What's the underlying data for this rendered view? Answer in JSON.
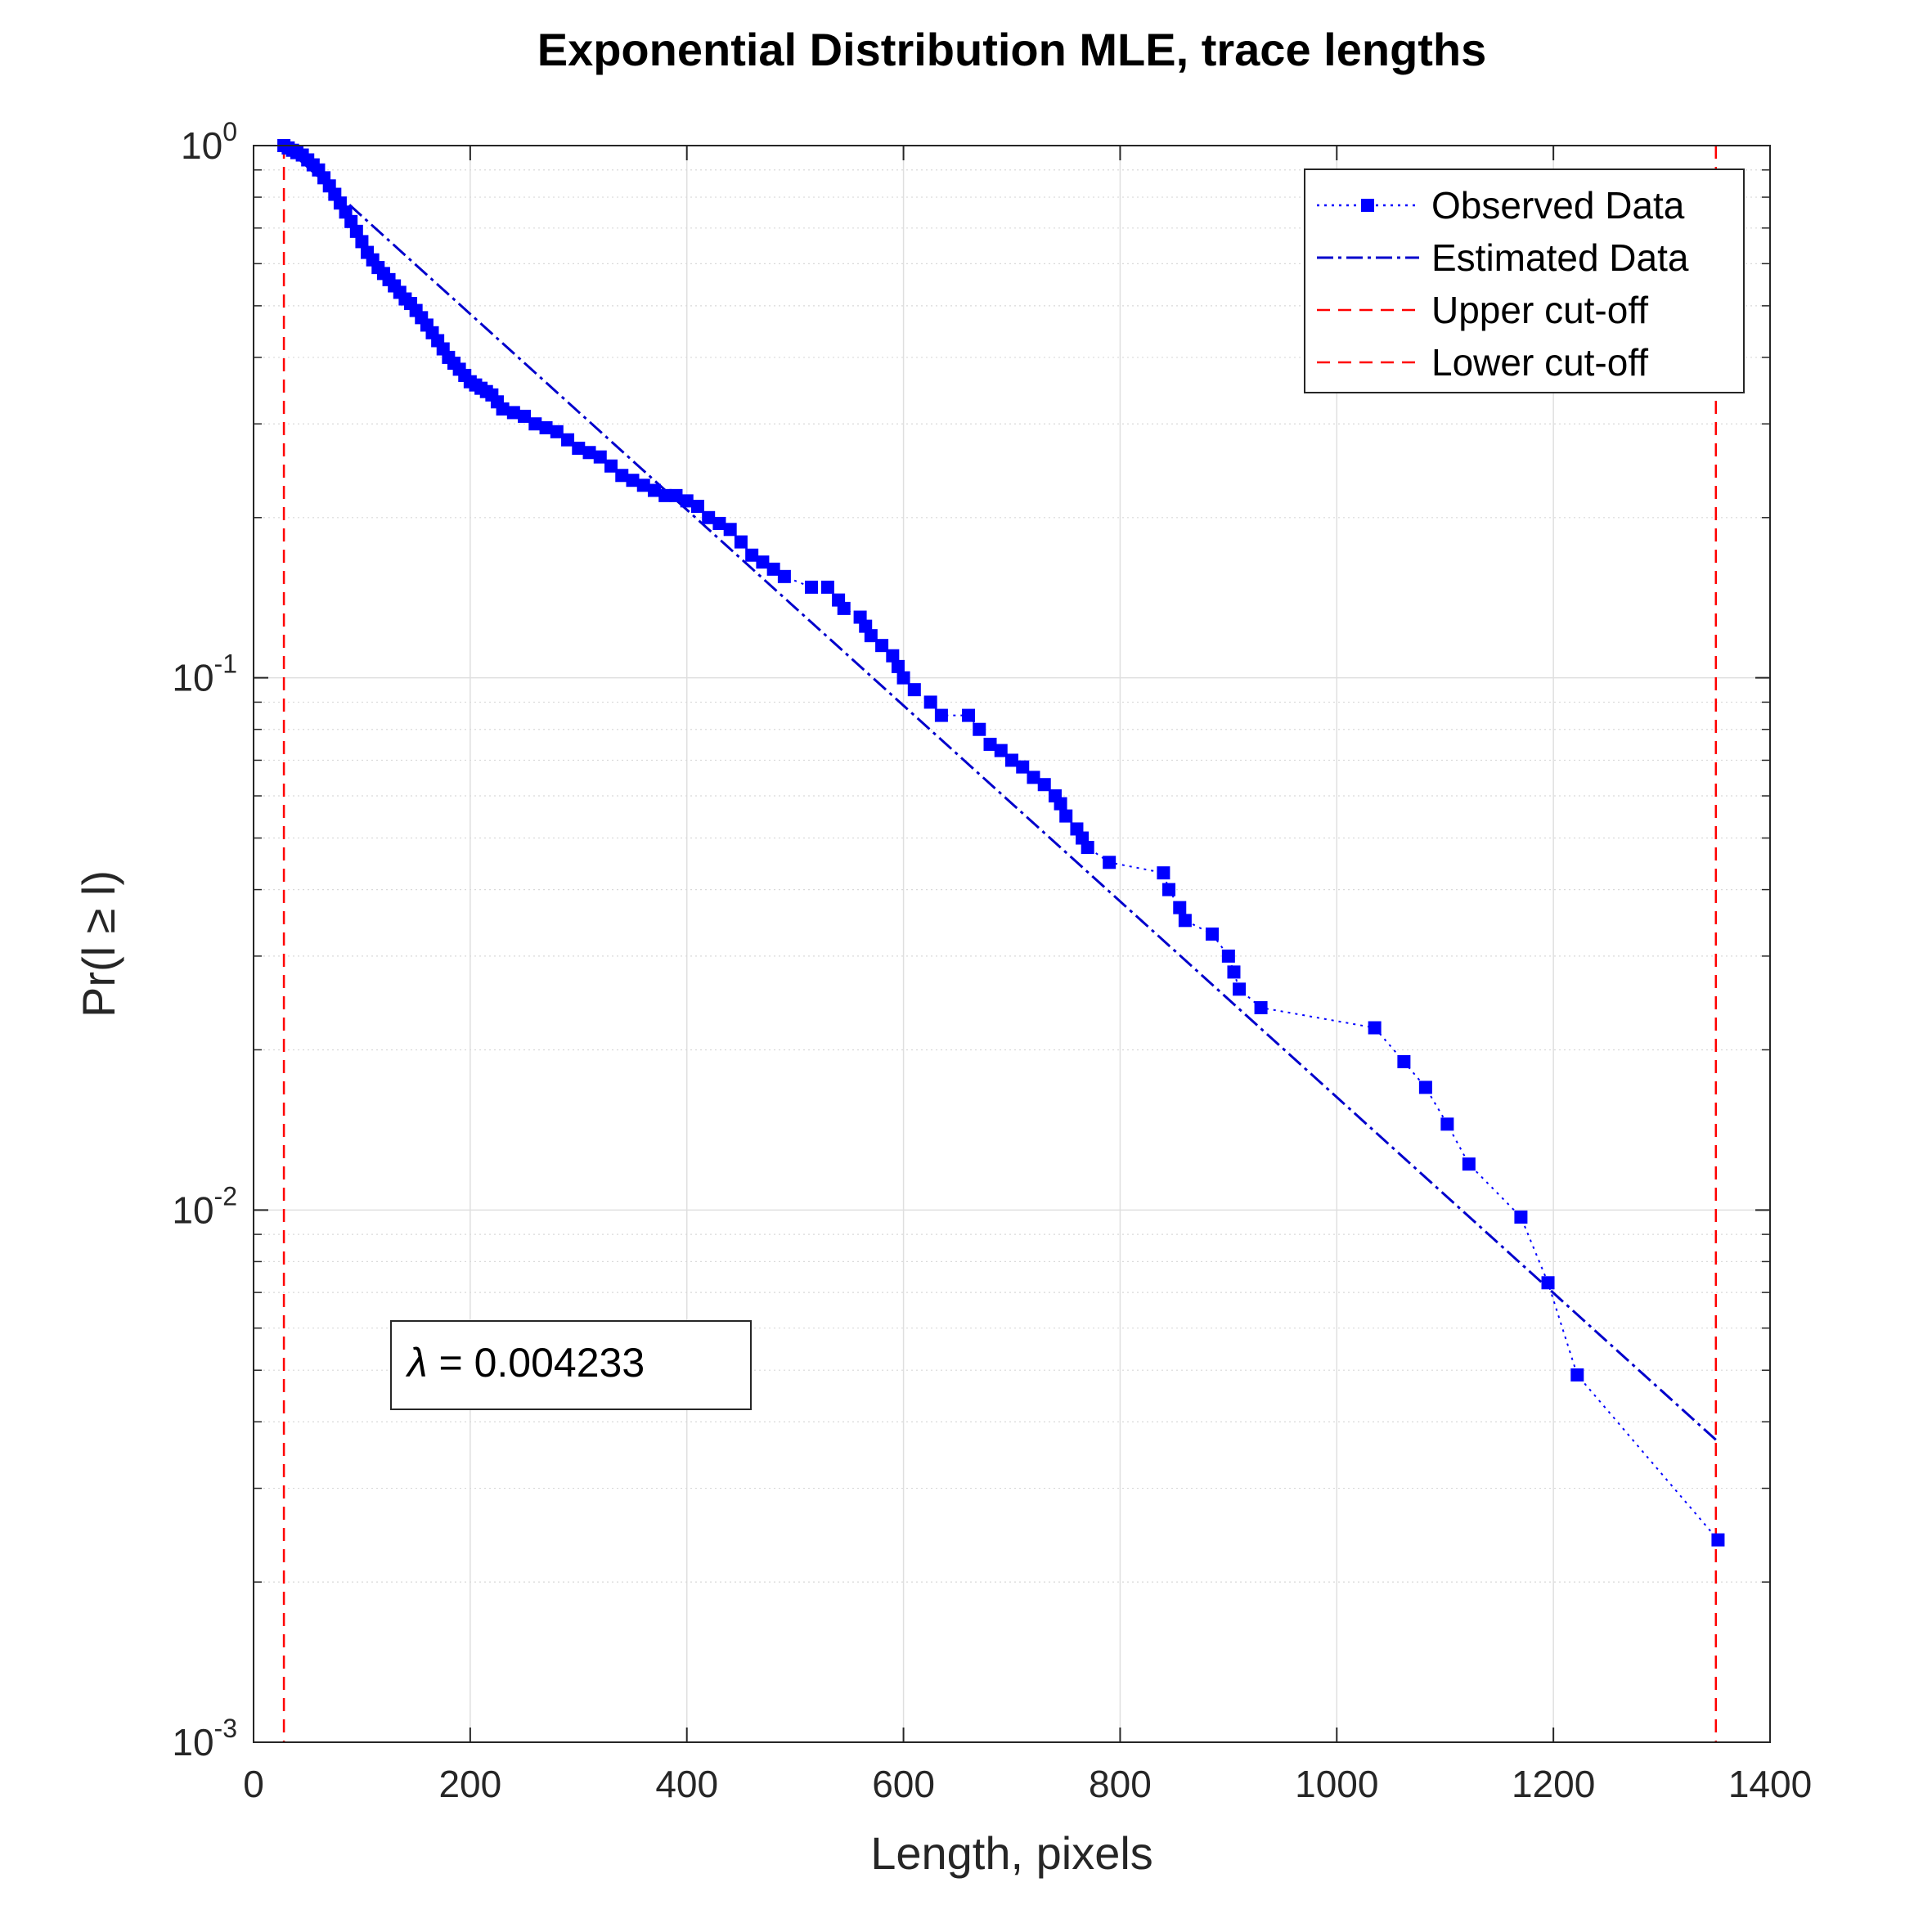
{
  "chart_data": {
    "type": "scatter",
    "title": "Exponential Distribution MLE, trace lengths",
    "xlabel": "Length, pixels",
    "ylabel": "Pr(l ≥ l)",
    "xlim": [
      0,
      1400
    ],
    "ylim": [
      0.001,
      1
    ],
    "yscale": "log",
    "grid": true,
    "x_ticks": [
      0,
      200,
      400,
      600,
      800,
      1000,
      1200,
      1400
    ],
    "y_ticks": [
      {
        "value": 1,
        "base": "10",
        "exp": "0"
      },
      {
        "value": 0.1,
        "base": "10",
        "exp": "-1"
      },
      {
        "value": 0.01,
        "base": "10",
        "exp": "-2"
      },
      {
        "value": 0.001,
        "base": "10",
        "exp": "-3"
      }
    ],
    "legend_position": "top-right",
    "legend": [
      {
        "label": "Observed Data",
        "color": "#0000ff",
        "style": "dotted-square"
      },
      {
        "label": "Estimated Data",
        "color": "#0000cc",
        "style": "dash-dot"
      },
      {
        "label": "Upper cut-off",
        "color": "#ff0000",
        "style": "dashed"
      },
      {
        "label": "Lower cut-off",
        "color": "#ff0000",
        "style": "dashed"
      }
    ],
    "annotation": {
      "symbol": "λ",
      "text": " = 0.004233"
    },
    "lambda": 0.004233,
    "lower_cutoff": 28,
    "upper_cutoff": 1350,
    "series": [
      {
        "name": "Observed Data",
        "color": "#0000ff",
        "x": [
          28,
          32,
          36,
          40,
          45,
          50,
          55,
          60,
          65,
          70,
          75,
          80,
          85,
          90,
          95,
          100,
          105,
          110,
          115,
          120,
          125,
          130,
          135,
          140,
          145,
          150,
          155,
          160,
          165,
          170,
          175,
          180,
          185,
          190,
          195,
          200,
          205,
          210,
          215,
          220,
          225,
          230,
          240,
          250,
          260,
          270,
          280,
          290,
          300,
          310,
          320,
          330,
          340,
          350,
          360,
          370,
          380,
          390,
          400,
          410,
          420,
          430,
          440,
          450,
          460,
          470,
          480,
          490,
          515,
          530,
          540,
          545,
          560,
          565,
          570,
          580,
          590,
          595,
          600,
          610,
          625,
          635,
          660,
          670,
          680,
          690,
          700,
          710,
          720,
          730,
          740,
          745,
          750,
          760,
          765,
          770,
          790,
          840,
          845,
          855,
          860,
          885,
          900,
          905,
          910,
          930,
          1035,
          1062,
          1082,
          1102,
          1122,
          1170,
          1195,
          1222,
          1352
        ],
        "y": [
          1.0,
          0.99,
          0.98,
          0.97,
          0.96,
          0.94,
          0.92,
          0.9,
          0.87,
          0.84,
          0.81,
          0.78,
          0.75,
          0.72,
          0.69,
          0.66,
          0.63,
          0.61,
          0.59,
          0.575,
          0.56,
          0.545,
          0.53,
          0.515,
          0.505,
          0.49,
          0.475,
          0.46,
          0.445,
          0.43,
          0.415,
          0.4,
          0.39,
          0.38,
          0.37,
          0.36,
          0.355,
          0.35,
          0.345,
          0.34,
          0.33,
          0.32,
          0.315,
          0.31,
          0.3,
          0.295,
          0.29,
          0.28,
          0.27,
          0.265,
          0.26,
          0.25,
          0.24,
          0.235,
          0.23,
          0.225,
          0.22,
          0.22,
          0.215,
          0.21,
          0.2,
          0.195,
          0.19,
          0.18,
          0.17,
          0.165,
          0.16,
          0.155,
          0.148,
          0.148,
          0.14,
          0.135,
          0.13,
          0.125,
          0.12,
          0.115,
          0.11,
          0.105,
          0.1,
          0.095,
          0.09,
          0.085,
          0.085,
          0.08,
          0.075,
          0.073,
          0.07,
          0.068,
          0.065,
          0.063,
          0.06,
          0.058,
          0.055,
          0.052,
          0.05,
          0.048,
          0.045,
          0.043,
          0.04,
          0.037,
          0.035,
          0.033,
          0.03,
          0.028,
          0.026,
          0.024,
          0.022,
          0.019,
          0.017,
          0.0145,
          0.0122,
          0.0097,
          0.0073,
          0.0049,
          0.0024
        ]
      },
      {
        "name": "Estimated Data",
        "color": "#0000cc",
        "x": [
          28,
          1350
        ],
        "y": [
          1.0,
          0.0037
        ]
      }
    ]
  }
}
